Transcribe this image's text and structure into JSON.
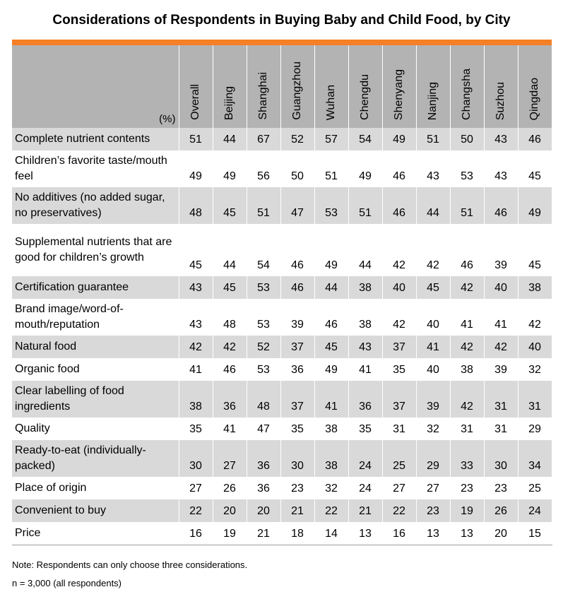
{
  "chart_data": {
    "type": "table",
    "title": "Considerations of Respondents in Buying Baby and Child Food, by City",
    "unit_label": "(%)",
    "columns": [
      "Overall",
      "Beijing",
      "Shanghai",
      "Guangzhou",
      "Wuhan",
      "Chengdu",
      "Shenyang",
      "Nanjing",
      "Changsha",
      "Suzhou",
      "Qingdao"
    ],
    "rows": [
      {
        "label": "Complete nutrient contents",
        "values": [
          51,
          44,
          67,
          52,
          57,
          54,
          49,
          51,
          50,
          43,
          46
        ]
      },
      {
        "label": "Children’s favorite taste/mouth feel",
        "values": [
          49,
          49,
          56,
          50,
          51,
          49,
          46,
          43,
          53,
          43,
          45
        ]
      },
      {
        "label": "No additives (no added sugar, no preservatives)",
        "values": [
          48,
          45,
          51,
          47,
          53,
          51,
          46,
          44,
          51,
          46,
          49
        ]
      },
      {
        "label": "Supplemental nutrients that are good for children’s growth",
        "values": [
          45,
          44,
          54,
          46,
          49,
          44,
          42,
          42,
          46,
          39,
          45
        ]
      },
      {
        "label": "Certification guarantee",
        "values": [
          43,
          45,
          53,
          46,
          44,
          38,
          40,
          45,
          42,
          40,
          38
        ]
      },
      {
        "label": "Brand image/word-of-mouth/reputation",
        "values": [
          43,
          48,
          53,
          39,
          46,
          38,
          42,
          40,
          41,
          41,
          42
        ]
      },
      {
        "label": "Natural food",
        "values": [
          42,
          42,
          52,
          37,
          45,
          43,
          37,
          41,
          42,
          42,
          40
        ]
      },
      {
        "label": "Organic food",
        "values": [
          41,
          46,
          53,
          36,
          49,
          41,
          35,
          40,
          38,
          39,
          32
        ]
      },
      {
        "label": "Clear labelling of food ingredients",
        "values": [
          38,
          36,
          48,
          37,
          41,
          36,
          37,
          39,
          42,
          31,
          31
        ]
      },
      {
        "label": "Quality",
        "values": [
          35,
          41,
          47,
          35,
          38,
          35,
          31,
          32,
          31,
          31,
          29
        ]
      },
      {
        "label": "Ready-to-eat (individually-packed)",
        "values": [
          30,
          27,
          36,
          30,
          38,
          24,
          25,
          29,
          33,
          30,
          34
        ]
      },
      {
        "label": "Place of origin",
        "values": [
          27,
          26,
          36,
          23,
          32,
          24,
          27,
          27,
          23,
          23,
          25
        ]
      },
      {
        "label": "Convenient to buy",
        "values": [
          22,
          20,
          20,
          21,
          22,
          21,
          22,
          23,
          19,
          26,
          24
        ]
      },
      {
        "label": "Price",
        "values": [
          16,
          19,
          21,
          18,
          14,
          13,
          16,
          13,
          13,
          20,
          15
        ]
      }
    ],
    "notes": [
      "Note: Respondents can only choose three considerations.",
      "n = 3,000 (all respondents)"
    ]
  },
  "colors": {
    "accent": "#f58025",
    "header_bg": "#b3b3b3",
    "row_shade": "#d9d9d9"
  }
}
